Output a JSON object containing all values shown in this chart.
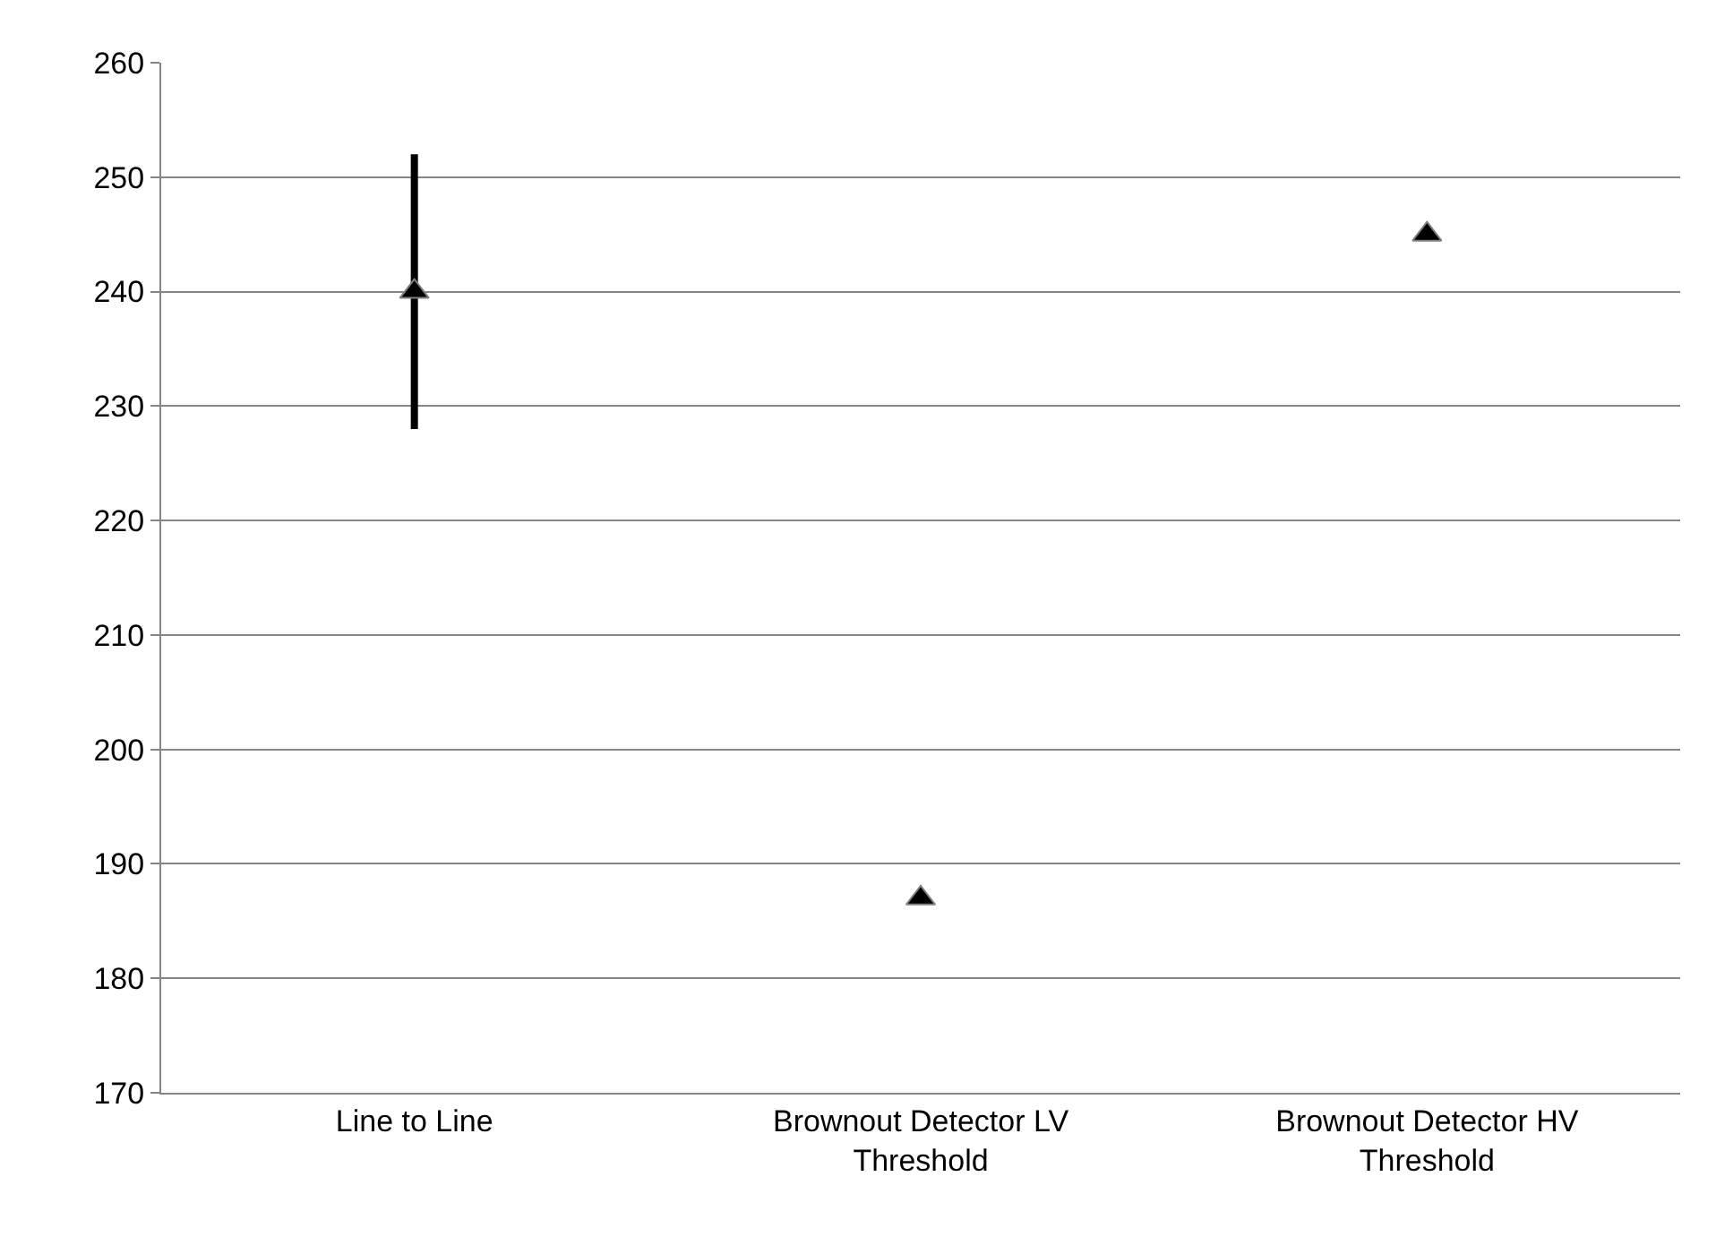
{
  "chart_data": {
    "type": "scatter",
    "categories": [
      "Line to Line",
      "Brownout Detector LV Threshold",
      "Brownout Detector HV Threshold"
    ],
    "series": [
      {
        "color": "#000000",
        "values": [
          240,
          187,
          245
        ],
        "errors": [
          12,
          null,
          null
        ]
      }
    ],
    "ylim": [
      170,
      260
    ],
    "yticks": [
      170,
      180,
      190,
      200,
      210,
      220,
      230,
      240,
      250,
      260
    ],
    "grid": "y",
    "marker": "triangle",
    "legend": false
  }
}
